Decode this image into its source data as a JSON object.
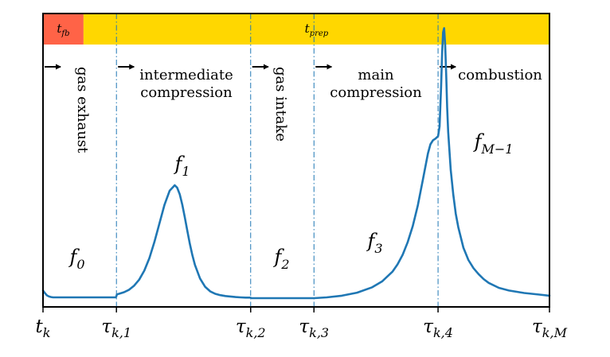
{
  "chart_data": {
    "type": "line",
    "title": "",
    "xlabel": "",
    "ylabel": "",
    "grid": false,
    "legend": "none",
    "x_ticks": [
      {
        "x": 0.0,
        "label": "t",
        "sub": "k"
      },
      {
        "x": 1.45,
        "label": "τ",
        "sub": "k,1"
      },
      {
        "x": 4.1,
        "label": "τ",
        "sub": "k,2"
      },
      {
        "x": 5.35,
        "label": "τ",
        "sub": "k,3"
      },
      {
        "x": 7.8,
        "label": "τ",
        "sub": "k,4"
      },
      {
        "x": 10.0,
        "label": "τ",
        "sub": "k,M"
      }
    ],
    "xlim": [
      0,
      10
    ],
    "ylim": [
      0,
      1.0
    ],
    "boundaries": [
      1.45,
      4.1,
      5.35,
      7.8
    ],
    "bar": {
      "segments": [
        {
          "label": "t",
          "sub": "fb",
          "from": 0.0,
          "to": 0.8,
          "color": "#ff6347"
        },
        {
          "label": "t",
          "sub": "prep",
          "from": 0.8,
          "to": 10.0,
          "color": "#ffd700"
        }
      ]
    },
    "phases": [
      {
        "label": "gas exhaust",
        "orientation": "vertical",
        "start": 0.0
      },
      {
        "label_lines": [
          "intermediate",
          "compression"
        ],
        "orientation": "horizontal",
        "start": 1.45
      },
      {
        "label": "gas intake",
        "orientation": "vertical",
        "start": 4.1
      },
      {
        "label_lines": [
          "main",
          "compression"
        ],
        "orientation": "horizontal",
        "start": 5.35
      },
      {
        "label": "combustion",
        "orientation": "horizontal",
        "start": 7.8
      }
    ],
    "function_labels": [
      {
        "name": "f",
        "sub": "0"
      },
      {
        "name": "f",
        "sub": "1"
      },
      {
        "name": "f",
        "sub": "2"
      },
      {
        "name": "f",
        "sub": "3"
      },
      {
        "name": "f",
        "sub": "M−1"
      }
    ],
    "series": [
      {
        "color": "#1f77b4",
        "x": [
          0.0,
          0.04,
          0.08,
          0.12,
          0.16,
          0.2,
          0.3,
          0.5,
          0.8,
          1.0,
          1.2,
          1.44,
          1.46,
          1.5,
          1.6,
          1.7,
          1.8,
          1.9,
          2.0,
          2.1,
          2.2,
          2.3,
          2.4,
          2.5,
          2.6,
          2.65,
          2.7,
          2.75,
          2.8,
          2.85,
          2.9,
          2.95,
          3.0,
          3.1,
          3.2,
          3.3,
          3.4,
          3.5,
          3.6,
          3.7,
          3.8,
          3.9,
          4.0,
          4.09,
          4.12,
          4.3,
          4.6,
          5.0,
          5.35,
          5.6,
          5.9,
          6.2,
          6.5,
          6.7,
          6.9,
          7.0,
          7.1,
          7.2,
          7.3,
          7.4,
          7.5,
          7.6,
          7.65,
          7.7,
          7.75,
          7.8,
          7.83,
          7.86,
          7.88,
          7.9,
          7.92,
          7.94,
          7.96,
          7.98,
          8.0,
          8.05,
          8.1,
          8.15,
          8.2,
          8.3,
          8.4,
          8.5,
          8.6,
          8.7,
          8.8,
          9.0,
          9.2,
          9.5,
          9.8,
          10.0
        ],
        "y": [
          0.028,
          0.018,
          0.01,
          0.006,
          0.004,
          0.003,
          0.003,
          0.003,
          0.003,
          0.003,
          0.003,
          0.003,
          0.014,
          0.016,
          0.022,
          0.031,
          0.046,
          0.068,
          0.101,
          0.147,
          0.206,
          0.275,
          0.343,
          0.394,
          0.414,
          0.405,
          0.381,
          0.343,
          0.296,
          0.246,
          0.199,
          0.157,
          0.122,
          0.072,
          0.042,
          0.025,
          0.016,
          0.011,
          0.008,
          0.006,
          0.004,
          0.003,
          0.002,
          0.002,
          0.0,
          0.0,
          0.0,
          0.0,
          0.0,
          0.003,
          0.009,
          0.02,
          0.04,
          0.062,
          0.097,
          0.124,
          0.159,
          0.205,
          0.264,
          0.339,
          0.434,
          0.531,
          0.564,
          0.579,
          0.585,
          0.594,
          0.63,
          0.775,
          0.9,
          0.975,
          0.99,
          0.93,
          0.82,
          0.7,
          0.61,
          0.47,
          0.38,
          0.31,
          0.26,
          0.185,
          0.14,
          0.11,
          0.088,
          0.07,
          0.056,
          0.038,
          0.028,
          0.019,
          0.013,
          0.009
        ]
      }
    ]
  }
}
